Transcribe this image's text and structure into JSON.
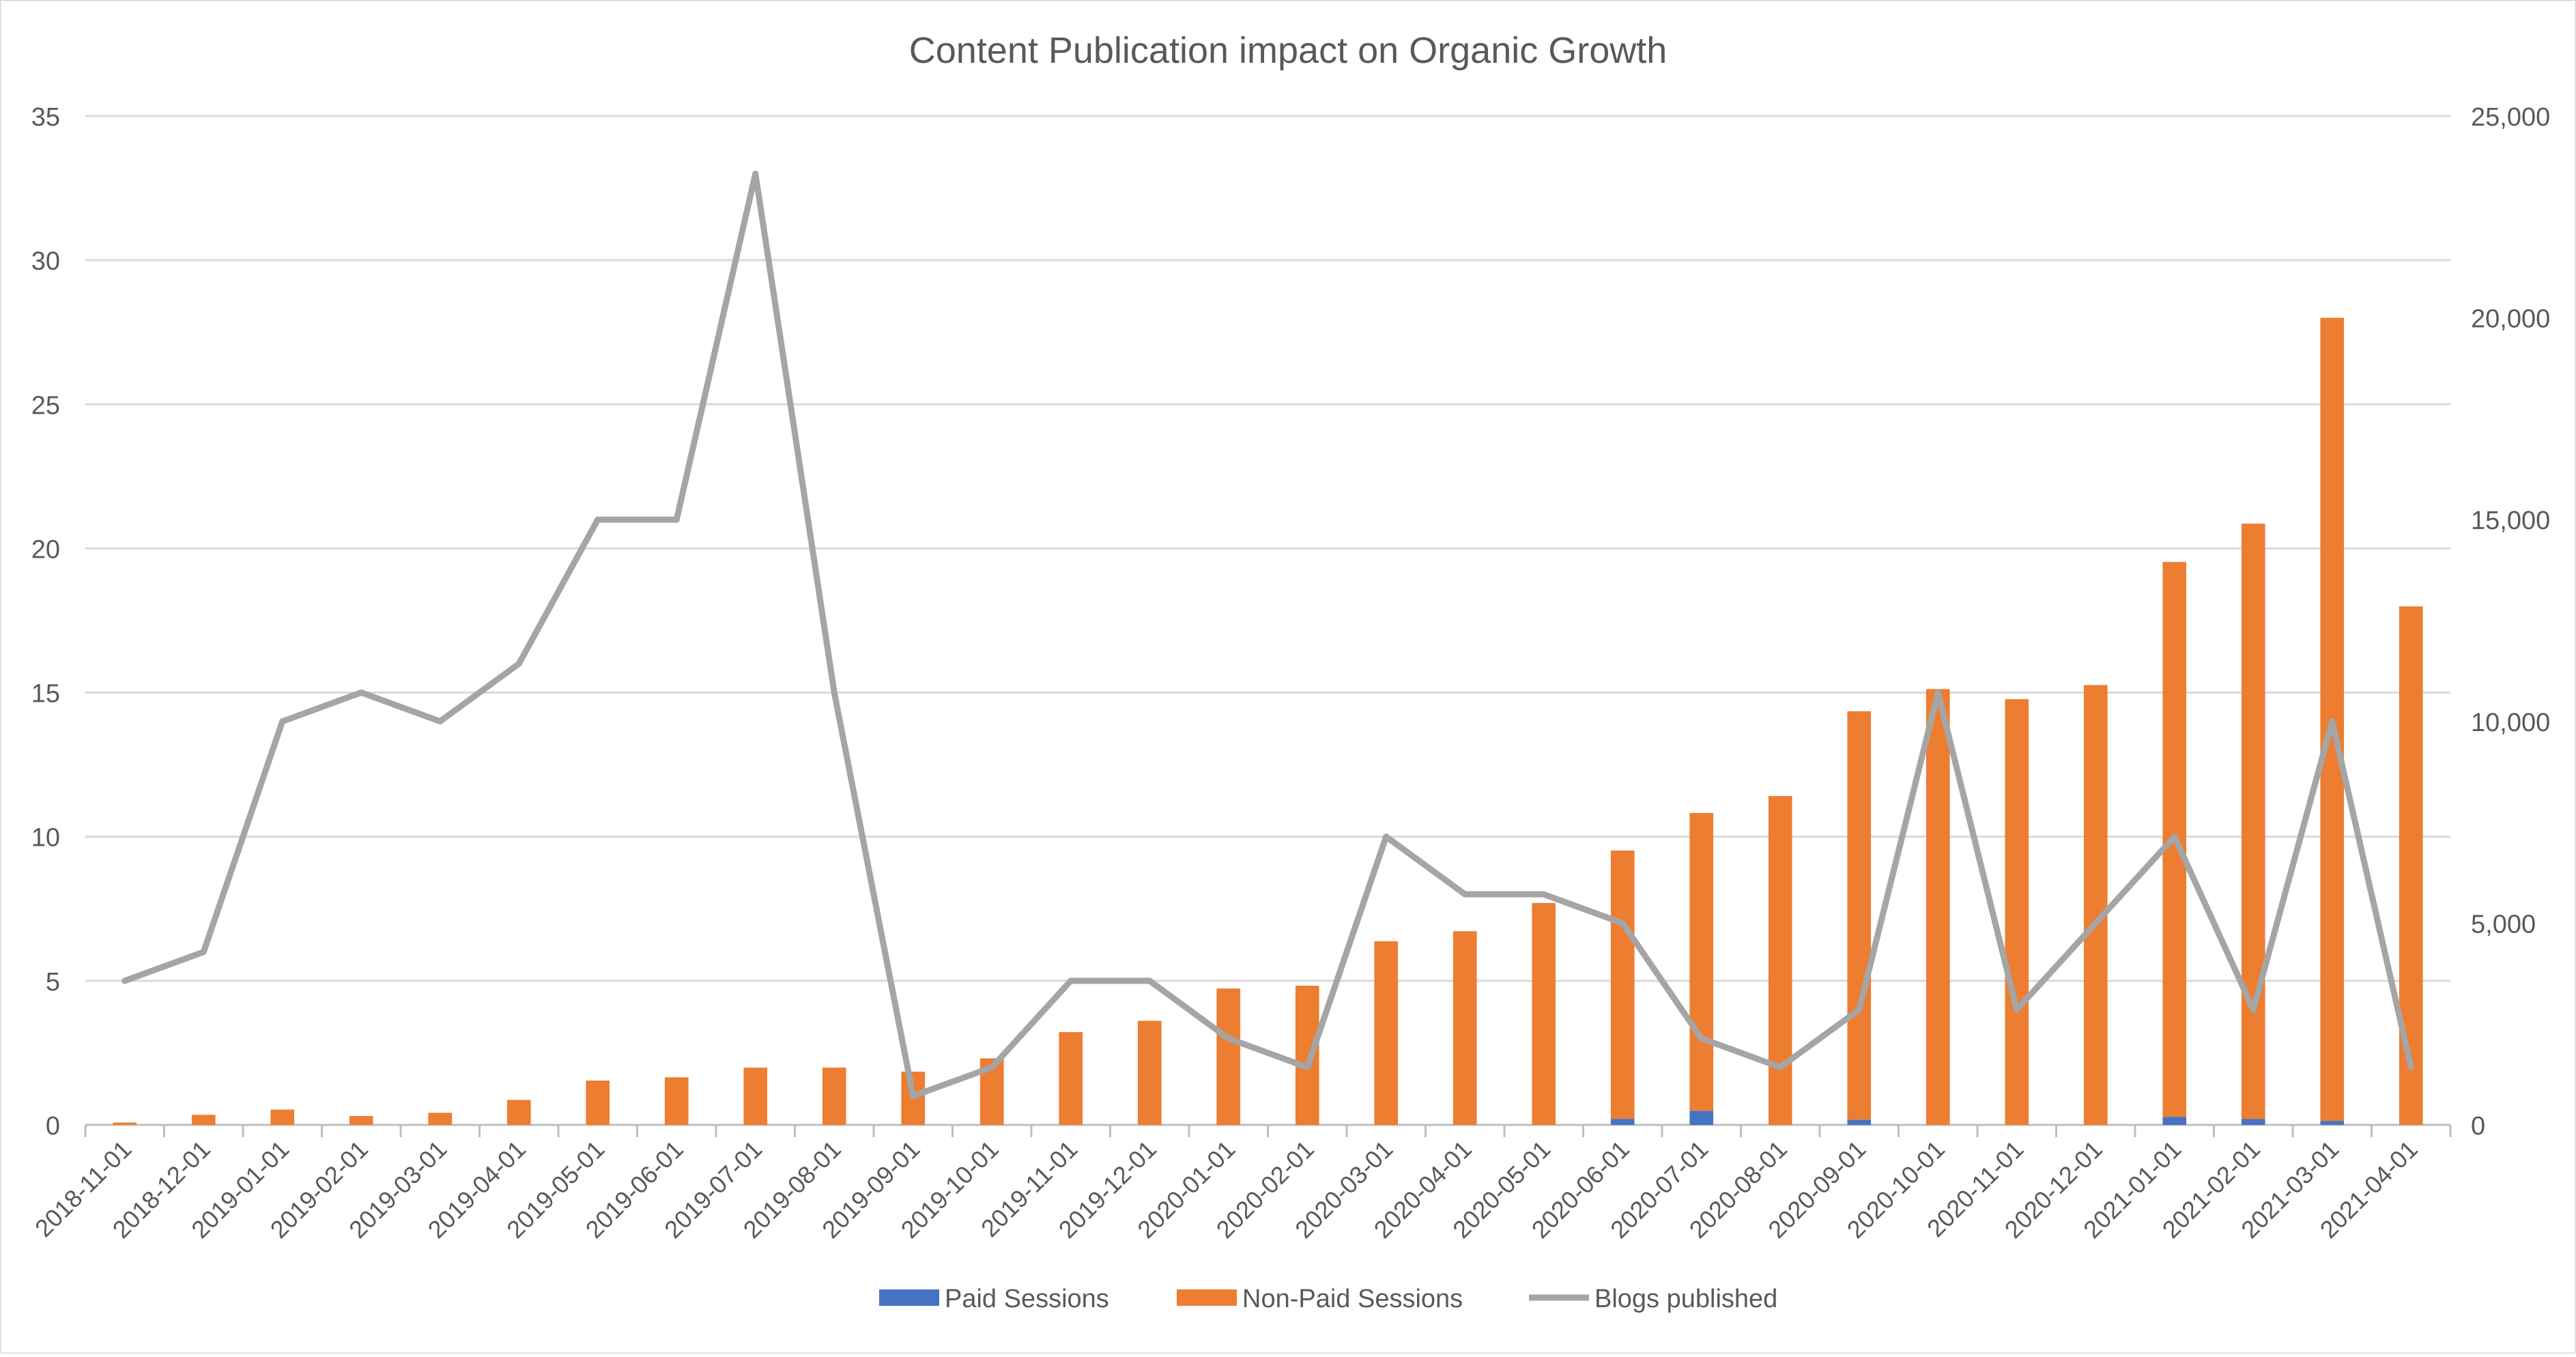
{
  "chart_data": {
    "type": "bar",
    "title": "Content Publication impact on Organic Growth",
    "stacked": true,
    "categories": [
      "2018-11-01",
      "2018-12-01",
      "2019-01-01",
      "2019-02-01",
      "2019-03-01",
      "2019-04-01",
      "2019-05-01",
      "2019-06-01",
      "2019-07-01",
      "2019-08-01",
      "2019-09-01",
      "2019-10-01",
      "2019-11-01",
      "2019-12-01",
      "2020-01-01",
      "2020-02-01",
      "2020-03-01",
      "2020-04-01",
      "2020-05-01",
      "2020-06-01",
      "2020-07-01",
      "2020-08-01",
      "2020-09-01",
      "2020-10-01",
      "2020-11-01",
      "2020-12-01",
      "2021-01-01",
      "2021-02-01",
      "2021-03-01",
      "2021-04-01"
    ],
    "left_axis": {
      "min": 0,
      "max": 35,
      "ticks": [
        0,
        5,
        10,
        15,
        20,
        25,
        30,
        35
      ]
    },
    "right_axis": {
      "min": 0,
      "max": 25000,
      "ticks": [
        "0",
        "5,000",
        "10,000",
        "15,000",
        "20,000",
        "25,000"
      ],
      "tick_values": [
        0,
        5000,
        10000,
        15000,
        20000,
        25000
      ]
    },
    "grid": true,
    "legend_position": "bottom",
    "series": [
      {
        "name": "Paid Sessions",
        "type": "bar",
        "axis": "right",
        "color": "#4472C4",
        "values": [
          0,
          0,
          0,
          0,
          0,
          0,
          0,
          0,
          0,
          0,
          0,
          0,
          0,
          0,
          0,
          0,
          0,
          0,
          0,
          150,
          350,
          0,
          130,
          0,
          0,
          0,
          200,
          150,
          100,
          0
        ]
      },
      {
        "name": "Non-Paid Sessions",
        "type": "bar",
        "axis": "right",
        "color": "#ED7D31",
        "values": [
          60,
          250,
          380,
          220,
          300,
          620,
          1100,
          1180,
          1420,
          1420,
          1320,
          1650,
          2300,
          2580,
          3380,
          3450,
          4550,
          4800,
          5500,
          6650,
          7380,
          8150,
          10120,
          10800,
          10550,
          10900,
          13750,
          14750,
          19900,
          12850
        ]
      },
      {
        "name": "Blogs published",
        "type": "line",
        "axis": "left",
        "color": "#A5A5A5",
        "values": [
          5,
          6,
          14,
          15,
          14,
          16,
          21,
          21,
          33,
          15,
          1,
          2,
          5,
          5,
          3,
          2,
          10,
          8,
          8,
          7,
          3,
          2,
          4,
          15,
          4,
          7,
          10,
          4,
          14,
          2
        ]
      }
    ]
  }
}
